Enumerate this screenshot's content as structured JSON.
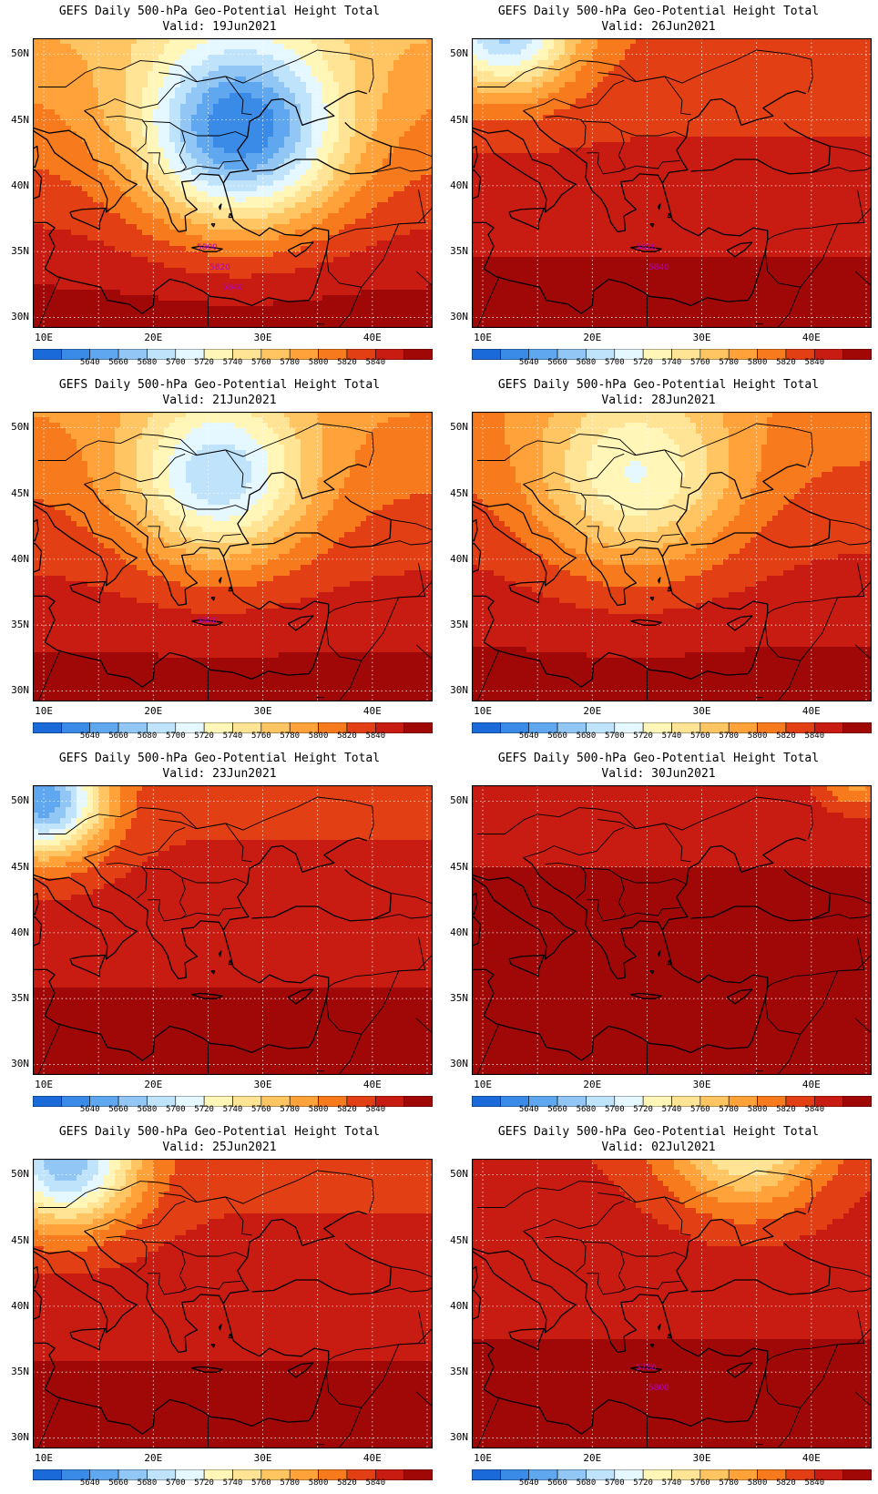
{
  "title": "GEFS Daily 500-hPa Geo-Potential Height Total",
  "panels": [
    {
      "valid": "Valid:  19Jun2021",
      "contour_labels": [
        "5800",
        "5820",
        "5840"
      ],
      "ridge_level": 0.05,
      "trough": {
        "lon": 28,
        "lat": 44,
        "depth": 1.0,
        "spread": 1.0
      }
    },
    {
      "valid": "Valid:  26Jun2021",
      "contour_labels": [
        "5820",
        "5840"
      ],
      "ridge_level": 0.5,
      "trough": {
        "lon": 12,
        "lat": 52,
        "depth": 0.8,
        "spread": 0.7
      }
    },
    {
      "valid": "Valid:  21Jun2021",
      "contour_labels": [
        "5840"
      ],
      "ridge_level": 0.25,
      "trough": {
        "lon": 26,
        "lat": 46,
        "depth": 0.7,
        "spread": 0.9
      }
    },
    {
      "valid": "Valid:  28Jun2021",
      "contour_labels": [],
      "ridge_level": 0.35,
      "trough": {
        "lon": 24,
        "lat": 46,
        "depth": 0.55,
        "spread": 1.0
      }
    },
    {
      "valid": "Valid:  23Jun2021",
      "contour_labels": [],
      "ridge_level": 0.6,
      "trough": {
        "lon": 10,
        "lat": 50,
        "depth": 1.0,
        "spread": 0.6
      }
    },
    {
      "valid": "Valid:  30Jun2021",
      "contour_labels": [],
      "ridge_level": 0.85,
      "trough": {
        "lon": 44,
        "lat": 52,
        "depth": 0.35,
        "spread": 0.4
      }
    },
    {
      "valid": "Valid:  25Jun2021",
      "contour_labels": [],
      "ridge_level": 0.6,
      "trough": {
        "lon": 12,
        "lat": 51,
        "depth": 0.9,
        "spread": 0.7
      }
    },
    {
      "valid": "Valid:  02Jul2021",
      "contour_labels": [
        "5780",
        "5800"
      ],
      "ridge_level": 0.7,
      "trough": {
        "lon": 34,
        "lat": 53,
        "depth": 0.6,
        "spread": 0.8
      }
    }
  ],
  "lat_labels": [
    "50N",
    "45N",
    "40N",
    "35N",
    "30N"
  ],
  "lon_labels": [
    "10E",
    "20E",
    "30E",
    "40E"
  ],
  "colorbar_labels": [
    "5640",
    "5660",
    "5680",
    "5700",
    "5720",
    "5740",
    "5760",
    "5780",
    "5800",
    "5820",
    "5840"
  ],
  "colorbar_colors": [
    "#1a6bd9",
    "#3a8be8",
    "#5fa8f0",
    "#92c6f5",
    "#bfe3fb",
    "#e6f8ff",
    "#fff6b8",
    "#ffe495",
    "#ffc562",
    "#ffa23a",
    "#f77a1c",
    "#e24014",
    "#c81c12",
    "#a00808"
  ]
}
